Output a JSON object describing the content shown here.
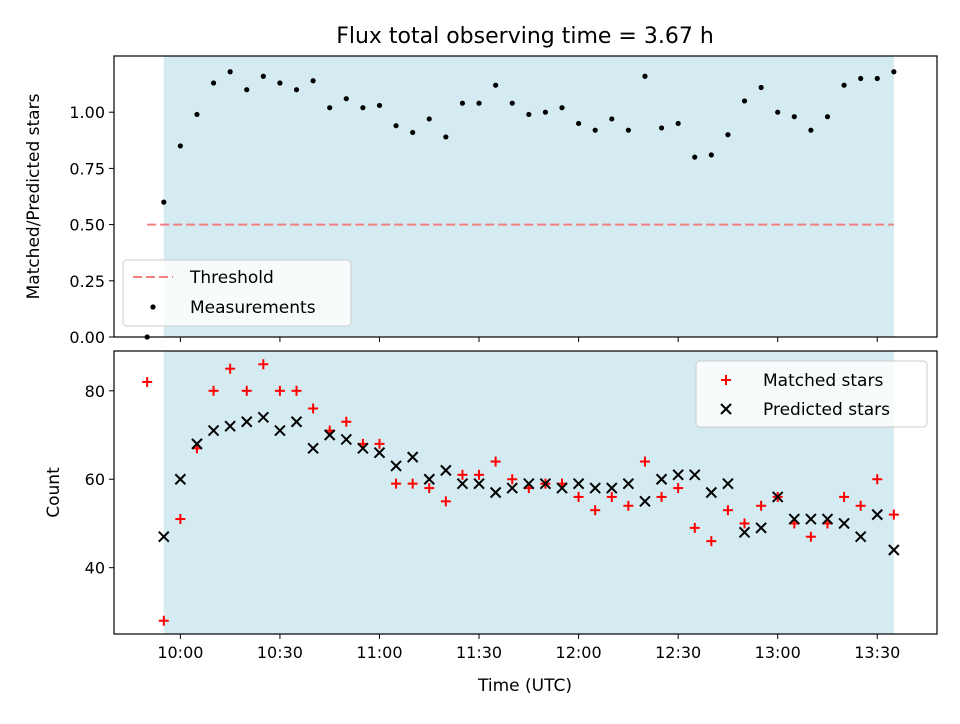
{
  "figure": {
    "title": "Flux total observing time = 3.67 h",
    "xlabel": "Time (UTC)",
    "x_ticks": [
      "10:00",
      "10:30",
      "11:00",
      "11:30",
      "12:00",
      "12:30",
      "13:00",
      "13:30"
    ],
    "x_tick_minutes": [
      0,
      30,
      60,
      90,
      120,
      150,
      180,
      210
    ],
    "x_range_minutes": [
      -20,
      228
    ],
    "x_zero_time": "10:00",
    "shaded_span_minutes": [
      -5,
      215
    ],
    "shade_color": "#d4ebf1"
  },
  "chart_data": [
    {
      "type": "scatter",
      "panel": "top",
      "ylabel": "Matched/Predicted stars",
      "ylim": [
        0,
        1.25
      ],
      "y_ticks": [
        "0.00",
        "0.25",
        "0.50",
        "0.75",
        "1.00"
      ],
      "y_tick_values": [
        0,
        0.25,
        0.5,
        0.75,
        1.0
      ],
      "legend_position": "lower-left",
      "threshold": {
        "name": "Threshold",
        "value": 0.5,
        "x_range_minutes": [
          -10,
          215
        ],
        "color": "#f08080"
      },
      "series": [
        {
          "name": "Measurements",
          "color": "#000000",
          "x_minutes": [
            -10,
            -5,
            0,
            5,
            10,
            15,
            20,
            25,
            30,
            35,
            40,
            45,
            50,
            55,
            60,
            65,
            70,
            75,
            80,
            85,
            90,
            95,
            100,
            105,
            110,
            115,
            120,
            125,
            130,
            135,
            140,
            145,
            150,
            155,
            160,
            165,
            170,
            175,
            180,
            185,
            190,
            195,
            200,
            205,
            210,
            215
          ],
          "y": [
            0.0,
            0.6,
            0.85,
            0.99,
            1.13,
            1.18,
            1.1,
            1.16,
            1.13,
            1.1,
            1.14,
            1.02,
            1.06,
            1.02,
            1.03,
            0.94,
            0.91,
            0.97,
            0.89,
            1.04,
            1.04,
            1.12,
            1.04,
            0.99,
            1.0,
            1.02,
            0.95,
            0.92,
            0.97,
            0.92,
            1.16,
            0.93,
            0.95,
            0.8,
            0.81,
            0.9,
            1.05,
            1.11,
            1.0,
            0.98,
            0.92,
            0.98,
            1.12,
            1.15,
            1.15,
            1.18
          ]
        }
      ]
    },
    {
      "type": "scatter",
      "panel": "bottom",
      "ylabel": "Count",
      "ylim": [
        25,
        89
      ],
      "y_ticks": [
        "40",
        "60",
        "80"
      ],
      "y_tick_values": [
        40,
        60,
        80
      ],
      "legend_position": "top-right",
      "series": [
        {
          "name": "Matched stars",
          "marker": "plus",
          "color": "#ff0000",
          "x_minutes": [
            -10,
            -5,
            0,
            5,
            10,
            15,
            20,
            25,
            30,
            35,
            40,
            45,
            50,
            55,
            60,
            65,
            70,
            75,
            80,
            85,
            90,
            95,
            100,
            105,
            110,
            115,
            120,
            125,
            130,
            135,
            140,
            145,
            150,
            155,
            160,
            165,
            170,
            175,
            180,
            185,
            190,
            195,
            200,
            205,
            210,
            215
          ],
          "y": [
            82,
            28,
            51,
            67,
            80,
            85,
            80,
            86,
            80,
            80,
            76,
            71,
            73,
            68,
            68,
            59,
            59,
            58,
            55,
            61,
            61,
            64,
            60,
            58,
            59,
            59,
            56,
            53,
            56,
            54,
            64,
            56,
            58,
            49,
            46,
            53,
            50,
            54,
            56,
            50,
            47,
            50,
            56,
            54,
            60,
            52
          ]
        },
        {
          "name": "Predicted stars",
          "marker": "x",
          "color": "#000000",
          "x_minutes": [
            -5,
            0,
            5,
            10,
            15,
            20,
            25,
            30,
            35,
            40,
            45,
            50,
            55,
            60,
            65,
            70,
            75,
            80,
            85,
            90,
            95,
            100,
            105,
            110,
            115,
            120,
            125,
            130,
            135,
            140,
            145,
            150,
            155,
            160,
            165,
            170,
            175,
            180,
            185,
            190,
            195,
            200,
            205,
            210,
            215
          ],
          "y": [
            47,
            60,
            68,
            71,
            72,
            73,
            74,
            71,
            73,
            67,
            70,
            69,
            67,
            66,
            63,
            65,
            60,
            62,
            59,
            59,
            57,
            58,
            59,
            59,
            58,
            59,
            58,
            58,
            59,
            55,
            60,
            61,
            61,
            57,
            59,
            48,
            49,
            56,
            51,
            51,
            51,
            50,
            47,
            52,
            44
          ]
        }
      ]
    }
  ]
}
